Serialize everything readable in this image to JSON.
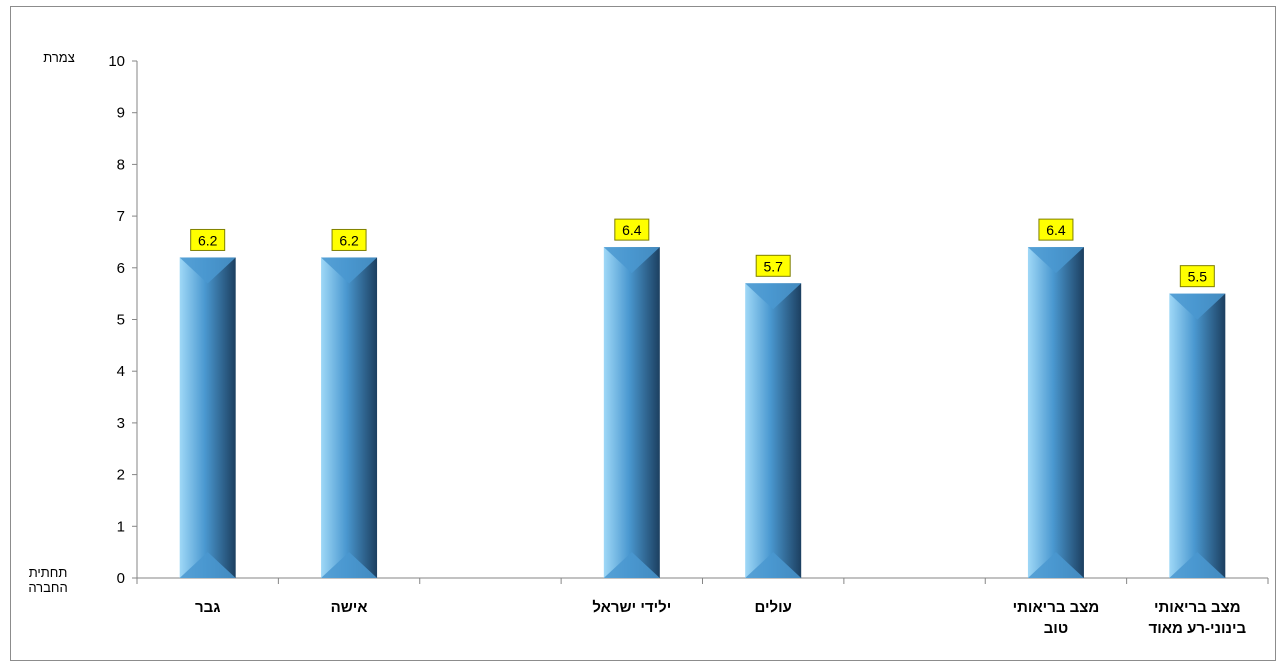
{
  "chart_data": {
    "type": "bar",
    "title": "",
    "xlabel": "",
    "ylabel": "",
    "y_top_label": "צמרת",
    "y_bottom_label": "תחתית\nהחברה",
    "ylim": [
      0,
      10
    ],
    "yticks": [
      0,
      1,
      2,
      3,
      4,
      5,
      6,
      7,
      8,
      9,
      10
    ],
    "grid": false,
    "categories": [
      "גבר",
      "אישה",
      "",
      "ילידי ישראל",
      "עולים",
      "",
      "מצב בריאותי טוב",
      "מצב בריאותי בינוני-רע מאוד"
    ],
    "category_lines": [
      [
        "גבר"
      ],
      [
        "אישה"
      ],
      [
        ""
      ],
      [
        "ילידי ישראל"
      ],
      [
        "עולים"
      ],
      [
        ""
      ],
      [
        "מצב בריאותי",
        "טוב"
      ],
      [
        "מצב בריאותי",
        "בינוני-רע מאוד"
      ]
    ],
    "values": [
      6.2,
      6.2,
      null,
      6.4,
      5.7,
      null,
      6.4,
      5.5
    ],
    "data_labels": [
      "6.2",
      "6.2",
      "",
      "6.4",
      "5.7",
      "",
      "6.4",
      "5.5"
    ],
    "colors": {
      "bar_light": "#9fd8f7",
      "bar_mid": "#4a98d0",
      "bar_dark": "#1c3f60",
      "label_bg": "#ffff00",
      "label_border": "#7f7f00",
      "axis": "#868686"
    }
  }
}
